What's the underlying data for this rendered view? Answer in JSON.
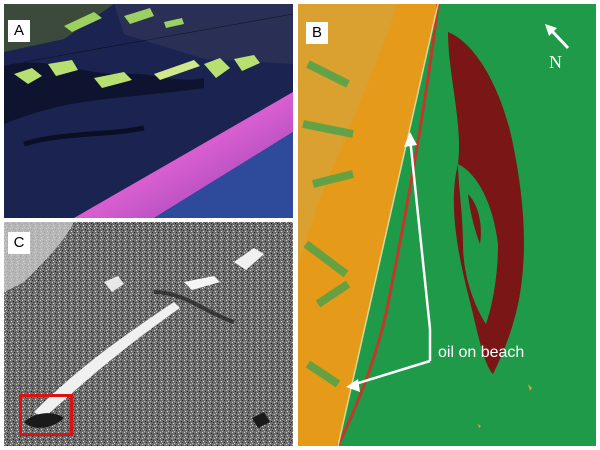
{
  "panels": {
    "a": {
      "label": "A"
    },
    "b": {
      "label": "B",
      "north_label": "N",
      "annotation": "oil on beach"
    },
    "c": {
      "label": "C"
    }
  },
  "colors": {
    "water_green": "#1f9a48",
    "oil_red": "#7a1616",
    "shore_orange": "#e59a1a",
    "annotation_white": "#ffffff",
    "highlight_box": "#e01010",
    "sar_gray": "#7a7a7a",
    "multispectral_dark": "#1a2348",
    "multispectral_pink": "#d95fd0"
  }
}
